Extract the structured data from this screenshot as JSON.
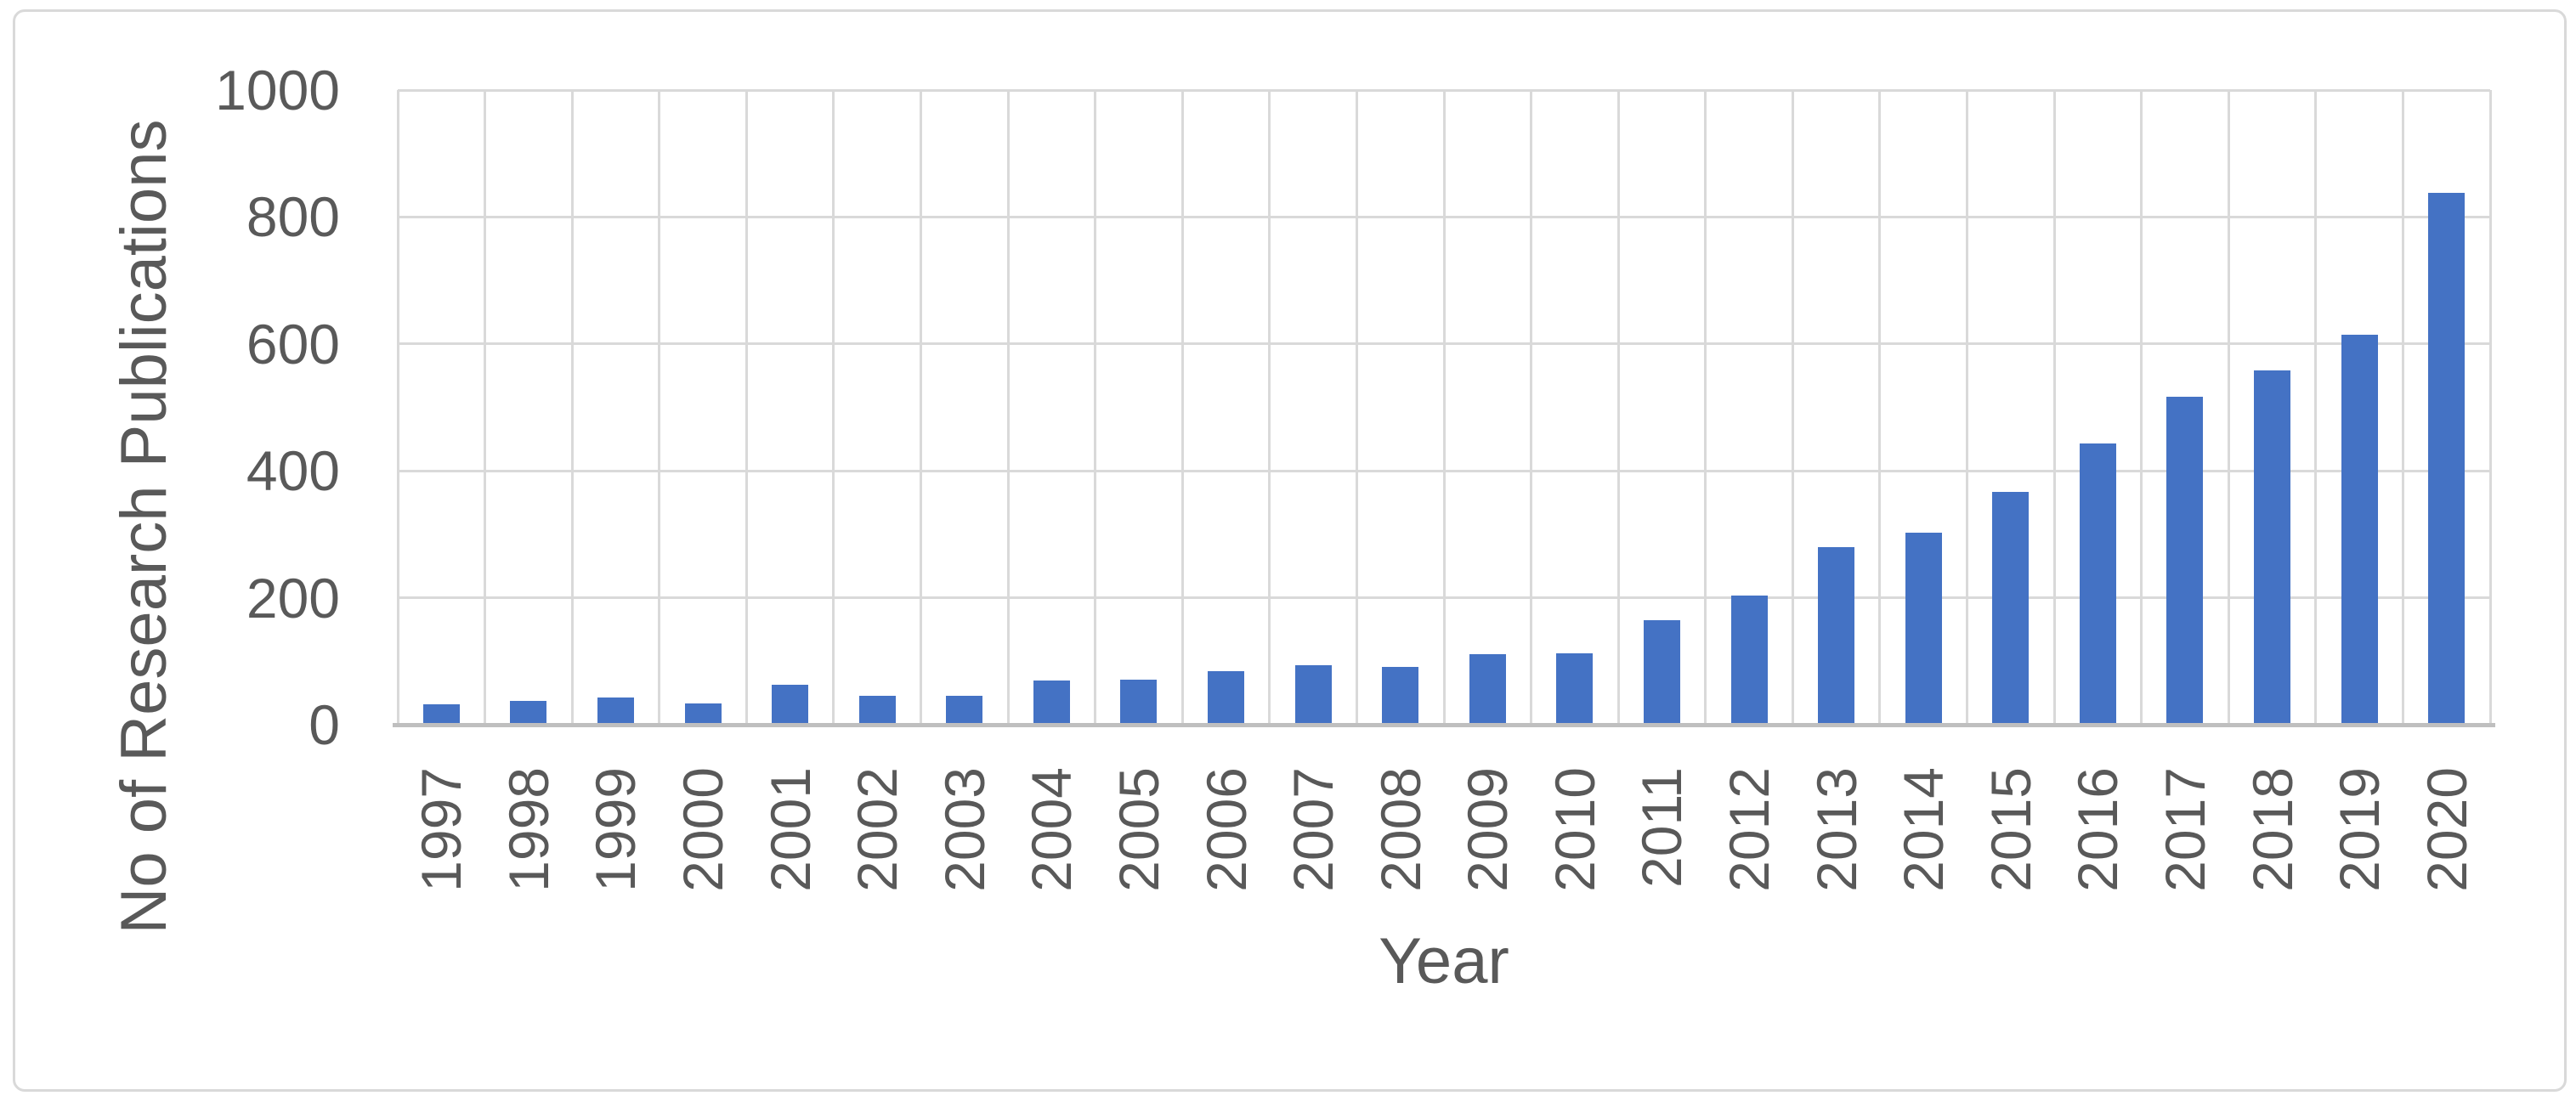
{
  "chart_data": {
    "type": "bar",
    "title": "",
    "xlabel": "Year",
    "ylabel": "No of Research Publications",
    "categories": [
      "1997",
      "1998",
      "1999",
      "2000",
      "2001",
      "2002",
      "2003",
      "2004",
      "2005",
      "2006",
      "2007",
      "2008",
      "2009",
      "2010",
      "2011",
      "2012",
      "2013",
      "2014",
      "2015",
      "2016",
      "2017",
      "2018",
      "2019",
      "2020"
    ],
    "values": [
      32,
      37,
      43,
      34,
      63,
      45,
      46,
      69,
      71,
      85,
      94,
      91,
      111,
      113,
      165,
      204,
      280,
      303,
      367,
      443,
      517,
      558,
      614,
      838
    ],
    "ylim": [
      0,
      1000
    ],
    "yticks": [
      0,
      200,
      400,
      600,
      800,
      1000
    ],
    "grid": "major-horizontal-and-vertical",
    "legend": "none",
    "bar_orientation": "vertical",
    "x_label_rotation_deg": -90
  },
  "colors": {
    "bar": "#4472C4",
    "gridline": "#D9D9D9",
    "axis_line": "#BFBFBF",
    "text": "#595959",
    "frame_border": "#D9D9D9",
    "background": "#FFFFFF"
  }
}
